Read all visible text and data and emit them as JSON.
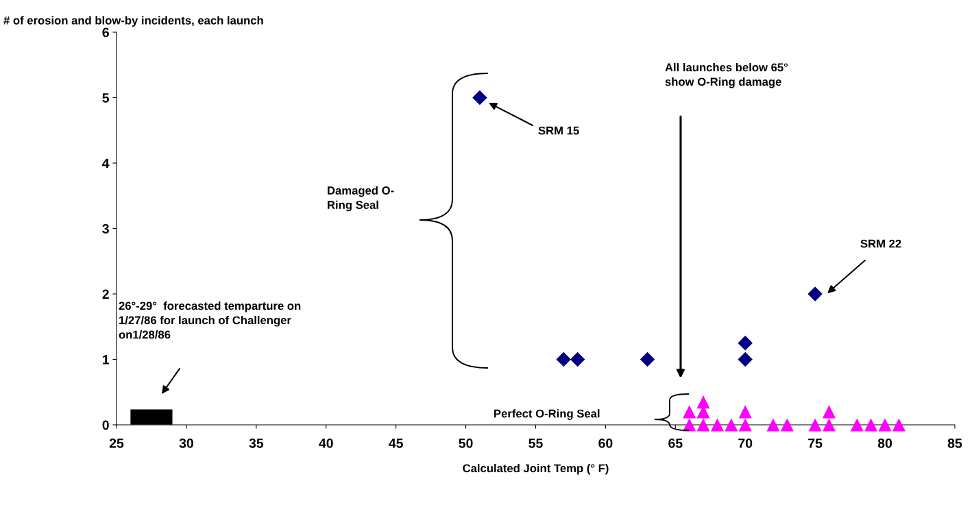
{
  "chart_data": {
    "type": "scatter",
    "ylabel": "# of erosion and blow-by incidents, each launch",
    "xlabel": "Calculated Joint Temp (° F)",
    "xlim": [
      25,
      85
    ],
    "xticks": [
      25,
      30,
      35,
      40,
      45,
      50,
      55,
      60,
      65,
      70,
      75,
      80,
      85
    ],
    "ylim": [
      0,
      6
    ],
    "yticks": [
      0,
      1,
      2,
      3,
      4,
      5,
      6
    ],
    "grid": false,
    "legend": false,
    "series": [
      {
        "marker": "diamond",
        "color": "#000080",
        "x": [
          51,
          57,
          58,
          63,
          70,
          70,
          75
        ],
        "values": [
          5,
          1,
          1,
          1,
          1.25,
          1,
          2
        ]
      },
      {
        "marker": "triangle",
        "color": "#ff00ff",
        "x": [
          66,
          67,
          68,
          69,
          70,
          72,
          73,
          75,
          76,
          78,
          79,
          80,
          81,
          66,
          67,
          70,
          76,
          67
        ],
        "values": [
          0,
          0,
          0,
          0,
          0,
          0,
          0,
          0,
          0,
          0,
          0,
          0,
          0,
          0.2,
          0.2,
          0.2,
          0.2,
          0.35
        ]
      },
      {
        "type": "line",
        "marker": "none",
        "color": "#000000",
        "x": [
          26,
          29
        ],
        "values": [
          0.12,
          0.12
        ]
      }
    ],
    "annotations": [
      "SRM 15",
      "SRM 22",
      "26°-29°  forecasted temparture on\n1/27/86 for launch of Challenger\non1/28/86",
      "All launches below 65°\nshow O-Ring damage",
      "Damaged O-\nRing Seal",
      "Perfect O-Ring Seal"
    ]
  }
}
